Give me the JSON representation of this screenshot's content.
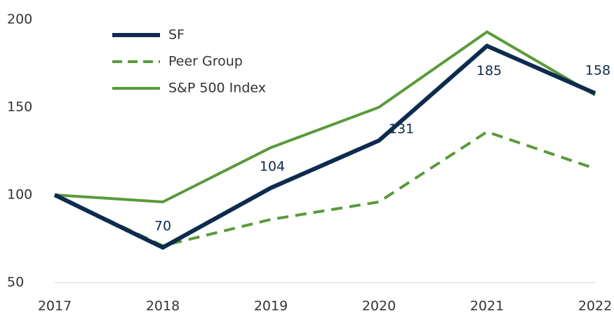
{
  "chart_data": {
    "type": "line",
    "categories": [
      "2017",
      "2018",
      "2019",
      "2020",
      "2021",
      "2022"
    ],
    "series": [
      {
        "name": "SF",
        "color": "#0d2b4e",
        "values": [
          100,
          70,
          104,
          131,
          185,
          158
        ]
      },
      {
        "name": "Peer Group",
        "color": "#5a9a3a",
        "values": [
          100,
          71,
          86,
          96,
          136,
          115
        ]
      },
      {
        "name": "S&P 500 Index",
        "color": "#5a9a3a",
        "values": [
          100,
          96,
          127,
          150,
          193,
          157
        ]
      }
    ],
    "ylim": [
      50,
      200
    ],
    "yticks": [
      50,
      100,
      150,
      200
    ],
    "legend": "upper left"
  }
}
